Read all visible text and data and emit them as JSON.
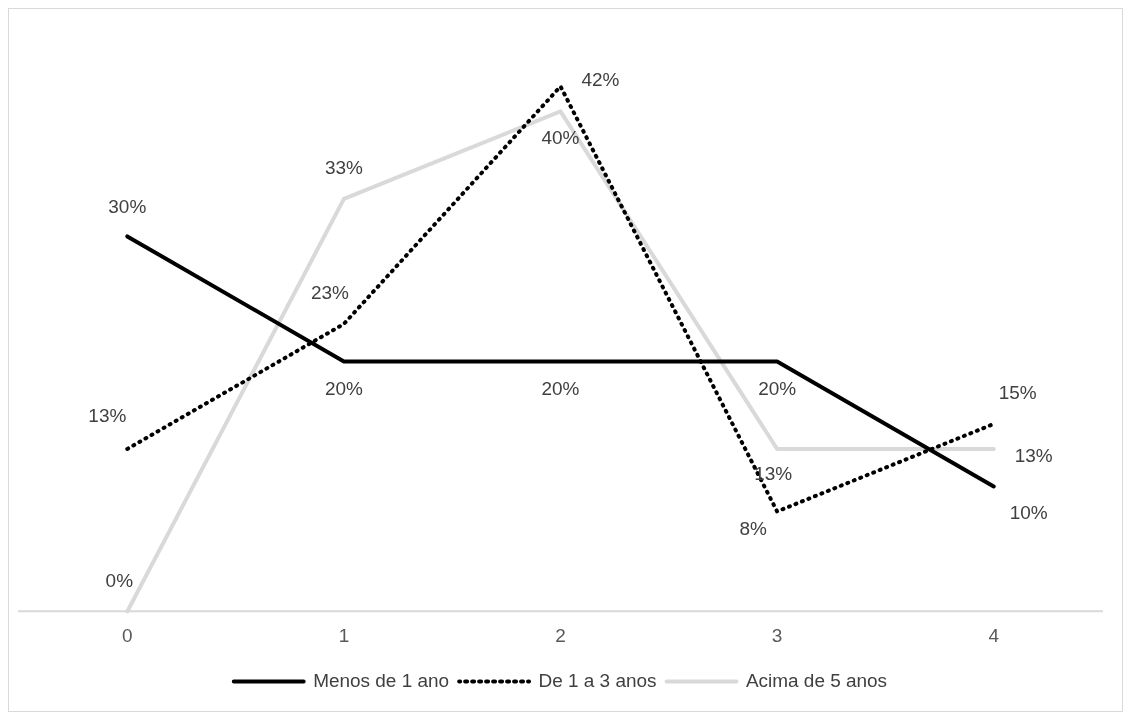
{
  "chart_data": {
    "type": "line",
    "categories": [
      "0",
      "1",
      "2",
      "3",
      "4"
    ],
    "series": [
      {
        "name": "Menos de 1 ano",
        "color": "#000000",
        "values": [
          30,
          20,
          20,
          20,
          10
        ],
        "value_labels": [
          "30%",
          "20%",
          "20%",
          "20%",
          "10%"
        ],
        "line_style": "solid"
      },
      {
        "name": "De 1 a 3 anos",
        "color": "#000000",
        "values": [
          13,
          23,
          42,
          8,
          15
        ],
        "value_labels": [
          "13%",
          "23%",
          "42%",
          "8%",
          "15%"
        ],
        "line_style": "dotted"
      },
      {
        "name": "Acima de 5 anos",
        "color": "#d9d9d9",
        "values": [
          0,
          33,
          40,
          13,
          13
        ],
        "value_labels": [
          "0%",
          "33%",
          "40%",
          "13%",
          "13%"
        ],
        "line_style": "solid"
      }
    ],
    "grid": false,
    "legend": "bottom",
    "marker": "none"
  }
}
